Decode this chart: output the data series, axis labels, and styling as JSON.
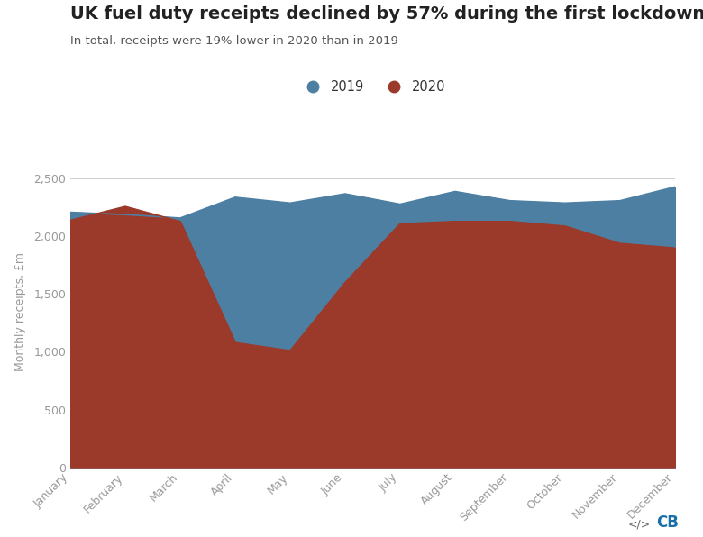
{
  "title": "UK fuel duty receipts declined by 57% during the first lockdown",
  "subtitle": "In total, receipts were 19% lower in 2020 than in 2019",
  "ylabel": "Monthly receipts, £m",
  "months": [
    "January",
    "February",
    "March",
    "April",
    "May",
    "June",
    "July",
    "August",
    "September",
    "October",
    "November",
    "December"
  ],
  "values_2019": [
    2210,
    2190,
    2160,
    2340,
    2290,
    2370,
    2280,
    2390,
    2310,
    2290,
    2310,
    2430
  ],
  "values_2020": [
    2140,
    2260,
    2130,
    1080,
    1010,
    1600,
    2110,
    2130,
    2130,
    2090,
    1940,
    1900
  ],
  "color_2019": "#4d7fa3",
  "color_2020": "#9b3a2a",
  "background_color": "#ffffff",
  "grid_color": "#d0d0d0",
  "title_color": "#222222",
  "subtitle_color": "#555555",
  "tick_color": "#999999",
  "ylabel_color": "#999999",
  "ylim": [
    0,
    2700
  ],
  "yticks": [
    0,
    500,
    1000,
    1500,
    2000,
    2500
  ],
  "legend_2019": "2019",
  "legend_2020": "2020",
  "title_fontsize": 14,
  "subtitle_fontsize": 9.5,
  "ylabel_fontsize": 9,
  "tick_fontsize": 9
}
